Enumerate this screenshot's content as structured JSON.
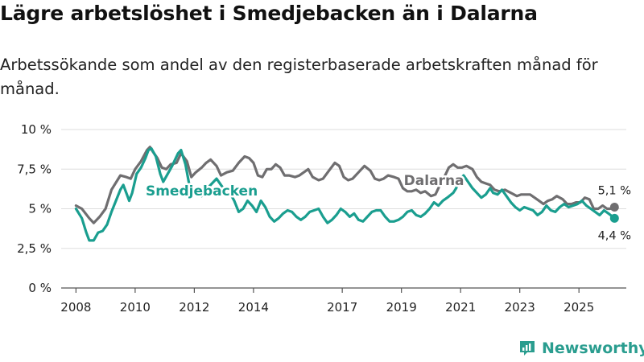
{
  "title": "Lägre arbetslöshet i Smedjebacken än i Dalarna",
  "subtitle": "Arbetssökande som andel av den registerbaserade arbetskraften månad för månad.",
  "brand": {
    "name": "Newsworthy",
    "icon": "newsworthy-logo-icon",
    "color": "#2a9d8f"
  },
  "chart_data": {
    "type": "line",
    "title": "Lägre arbetslöshet i Smedjebacken än i Dalarna",
    "xlabel": "",
    "ylabel": "",
    "xlim": [
      2007.5,
      2026.6
    ],
    "ylim": [
      0,
      10
    ],
    "grid": true,
    "x_ticks": [
      2008,
      2010,
      2012,
      2014,
      2017,
      2019,
      2021,
      2023,
      2025
    ],
    "y_ticks": [
      {
        "value": 0,
        "label": "0 %"
      },
      {
        "value": 2.5,
        "label": "2,5 %"
      },
      {
        "value": 5,
        "label": "5 %"
      },
      {
        "value": 7.5,
        "label": "7,5 %"
      },
      {
        "value": 10,
        "label": "10 %"
      }
    ],
    "series": [
      {
        "name": "Dalarna",
        "color": "#6f6e70",
        "end_label": "5,1 %",
        "label_anchor": {
          "x": 2020.1,
          "y": 6.5
        },
        "points": [
          [
            2008.0,
            5.2
          ],
          [
            2008.2,
            5.0
          ],
          [
            2008.45,
            4.4
          ],
          [
            2008.6,
            4.1
          ],
          [
            2008.8,
            4.5
          ],
          [
            2009.0,
            5.0
          ],
          [
            2009.2,
            6.2
          ],
          [
            2009.5,
            7.1
          ],
          [
            2009.7,
            7.0
          ],
          [
            2009.85,
            6.9
          ],
          [
            2010.0,
            7.5
          ],
          [
            2010.2,
            8.0
          ],
          [
            2010.4,
            8.7
          ],
          [
            2010.5,
            8.9
          ],
          [
            2010.6,
            8.6
          ],
          [
            2010.75,
            8.2
          ],
          [
            2010.9,
            7.6
          ],
          [
            2011.05,
            7.5
          ],
          [
            2011.2,
            7.8
          ],
          [
            2011.4,
            7.9
          ],
          [
            2011.55,
            8.5
          ],
          [
            2011.75,
            8.0
          ],
          [
            2011.9,
            7.0
          ],
          [
            2012.05,
            7.3
          ],
          [
            2012.25,
            7.6
          ],
          [
            2012.4,
            7.9
          ],
          [
            2012.55,
            8.1
          ],
          [
            2012.75,
            7.7
          ],
          [
            2012.9,
            7.1
          ],
          [
            2013.1,
            7.3
          ],
          [
            2013.3,
            7.4
          ],
          [
            2013.5,
            7.9
          ],
          [
            2013.7,
            8.3
          ],
          [
            2013.85,
            8.2
          ],
          [
            2014.0,
            7.9
          ],
          [
            2014.15,
            7.1
          ],
          [
            2014.3,
            7.0
          ],
          [
            2014.45,
            7.5
          ],
          [
            2014.6,
            7.5
          ],
          [
            2014.75,
            7.8
          ],
          [
            2014.9,
            7.6
          ],
          [
            2015.05,
            7.1
          ],
          [
            2015.2,
            7.1
          ],
          [
            2015.4,
            7.0
          ],
          [
            2015.55,
            7.1
          ],
          [
            2015.7,
            7.3
          ],
          [
            2015.85,
            7.5
          ],
          [
            2016.0,
            7.0
          ],
          [
            2016.2,
            6.8
          ],
          [
            2016.35,
            6.9
          ],
          [
            2016.55,
            7.4
          ],
          [
            2016.75,
            7.9
          ],
          [
            2016.9,
            7.7
          ],
          [
            2017.05,
            7.0
          ],
          [
            2017.2,
            6.8
          ],
          [
            2017.35,
            6.9
          ],
          [
            2017.55,
            7.3
          ],
          [
            2017.75,
            7.7
          ],
          [
            2017.95,
            7.4
          ],
          [
            2018.1,
            6.9
          ],
          [
            2018.25,
            6.8
          ],
          [
            2018.4,
            6.9
          ],
          [
            2018.55,
            7.1
          ],
          [
            2018.75,
            7.0
          ],
          [
            2018.9,
            6.9
          ],
          [
            2019.05,
            6.3
          ],
          [
            2019.2,
            6.1
          ],
          [
            2019.35,
            6.1
          ],
          [
            2019.5,
            6.2
          ],
          [
            2019.65,
            6.0
          ],
          [
            2019.8,
            6.1
          ],
          [
            2020.0,
            5.8
          ],
          [
            2020.15,
            5.9
          ],
          [
            2020.3,
            6.5
          ],
          [
            2020.45,
            7.0
          ],
          [
            2020.6,
            7.6
          ],
          [
            2020.75,
            7.8
          ],
          [
            2020.9,
            7.6
          ],
          [
            2021.05,
            7.6
          ],
          [
            2021.2,
            7.7
          ],
          [
            2021.4,
            7.5
          ],
          [
            2021.55,
            7.0
          ],
          [
            2021.7,
            6.7
          ],
          [
            2021.85,
            6.6
          ],
          [
            2022.0,
            6.5
          ],
          [
            2022.15,
            6.2
          ],
          [
            2022.3,
            6.1
          ],
          [
            2022.5,
            6.2
          ],
          [
            2022.7,
            6.0
          ],
          [
            2022.9,
            5.8
          ],
          [
            2023.05,
            5.9
          ],
          [
            2023.2,
            5.9
          ],
          [
            2023.35,
            5.9
          ],
          [
            2023.5,
            5.7
          ],
          [
            2023.65,
            5.5
          ],
          [
            2023.8,
            5.3
          ],
          [
            2023.95,
            5.5
          ],
          [
            2024.1,
            5.6
          ],
          [
            2024.25,
            5.8
          ],
          [
            2024.45,
            5.6
          ],
          [
            2024.6,
            5.3
          ],
          [
            2024.75,
            5.3
          ],
          [
            2024.9,
            5.4
          ],
          [
            2025.05,
            5.4
          ],
          [
            2025.2,
            5.7
          ],
          [
            2025.35,
            5.6
          ],
          [
            2025.5,
            5.0
          ],
          [
            2025.65,
            5.0
          ],
          [
            2025.8,
            5.2
          ],
          [
            2025.95,
            5.0
          ],
          [
            2026.05,
            5.0
          ],
          [
            2026.2,
            5.1
          ]
        ]
      },
      {
        "name": "Smedjebacken",
        "color": "#1a9e8f",
        "end_label": "4,4 %",
        "label_anchor": {
          "x": 2012.25,
          "y": 5.85
        },
        "points": [
          [
            2008.0,
            5.0
          ],
          [
            2008.2,
            4.4
          ],
          [
            2008.35,
            3.5
          ],
          [
            2008.45,
            3.0
          ],
          [
            2008.6,
            3.0
          ],
          [
            2008.75,
            3.5
          ],
          [
            2008.9,
            3.6
          ],
          [
            2009.05,
            4.0
          ],
          [
            2009.2,
            4.8
          ],
          [
            2009.35,
            5.5
          ],
          [
            2009.5,
            6.2
          ],
          [
            2009.6,
            6.5
          ],
          [
            2009.7,
            6.0
          ],
          [
            2009.8,
            5.5
          ],
          [
            2009.9,
            6.0
          ],
          [
            2010.05,
            7.2
          ],
          [
            2010.2,
            7.6
          ],
          [
            2010.35,
            8.2
          ],
          [
            2010.45,
            8.7
          ],
          [
            2010.55,
            8.8
          ],
          [
            2010.7,
            8.3
          ],
          [
            2010.85,
            7.2
          ],
          [
            2010.95,
            6.7
          ],
          [
            2011.1,
            7.2
          ],
          [
            2011.25,
            7.7
          ],
          [
            2011.45,
            8.5
          ],
          [
            2011.55,
            8.7
          ],
          [
            2011.7,
            7.8
          ],
          [
            2011.85,
            6.3
          ],
          [
            2012.0,
            6.1
          ],
          [
            2012.15,
            6.2
          ],
          [
            2012.25,
            5.8
          ],
          [
            2012.45,
            6.3
          ],
          [
            2012.6,
            6.6
          ],
          [
            2012.75,
            6.9
          ],
          [
            2012.9,
            6.5
          ],
          [
            2013.05,
            6.1
          ],
          [
            2013.2,
            6.0
          ],
          [
            2013.35,
            5.5
          ],
          [
            2013.5,
            4.8
          ],
          [
            2013.65,
            5.0
          ],
          [
            2013.8,
            5.5
          ],
          [
            2013.95,
            5.2
          ],
          [
            2014.1,
            4.8
          ],
          [
            2014.25,
            5.5
          ],
          [
            2014.4,
            5.1
          ],
          [
            2014.55,
            4.5
          ],
          [
            2014.7,
            4.2
          ],
          [
            2014.85,
            4.4
          ],
          [
            2015.0,
            4.7
          ],
          [
            2015.15,
            4.9
          ],
          [
            2015.3,
            4.8
          ],
          [
            2015.45,
            4.5
          ],
          [
            2015.6,
            4.3
          ],
          [
            2015.75,
            4.5
          ],
          [
            2015.9,
            4.8
          ],
          [
            2016.05,
            4.9
          ],
          [
            2016.2,
            5.0
          ],
          [
            2016.35,
            4.5
          ],
          [
            2016.5,
            4.1
          ],
          [
            2016.65,
            4.3
          ],
          [
            2016.8,
            4.6
          ],
          [
            2016.95,
            5.0
          ],
          [
            2017.1,
            4.8
          ],
          [
            2017.25,
            4.5
          ],
          [
            2017.4,
            4.7
          ],
          [
            2017.55,
            4.3
          ],
          [
            2017.7,
            4.2
          ],
          [
            2017.85,
            4.5
          ],
          [
            2018.0,
            4.8
          ],
          [
            2018.15,
            4.9
          ],
          [
            2018.3,
            4.9
          ],
          [
            2018.45,
            4.5
          ],
          [
            2018.6,
            4.2
          ],
          [
            2018.75,
            4.2
          ],
          [
            2018.9,
            4.3
          ],
          [
            2019.05,
            4.5
          ],
          [
            2019.2,
            4.8
          ],
          [
            2019.35,
            4.9
          ],
          [
            2019.5,
            4.6
          ],
          [
            2019.65,
            4.5
          ],
          [
            2019.8,
            4.7
          ],
          [
            2019.95,
            5.0
          ],
          [
            2020.1,
            5.4
          ],
          [
            2020.25,
            5.2
          ],
          [
            2020.4,
            5.5
          ],
          [
            2020.55,
            5.7
          ],
          [
            2020.75,
            6.0
          ],
          [
            2020.85,
            6.3
          ],
          [
            2020.95,
            6.8
          ],
          [
            2021.1,
            7.1
          ],
          [
            2021.25,
            6.7
          ],
          [
            2021.4,
            6.3
          ],
          [
            2021.55,
            6.0
          ],
          [
            2021.7,
            5.7
          ],
          [
            2021.85,
            5.9
          ],
          [
            2022.0,
            6.3
          ],
          [
            2022.1,
            6.0
          ],
          [
            2022.25,
            5.9
          ],
          [
            2022.4,
            6.2
          ],
          [
            2022.55,
            5.8
          ],
          [
            2022.7,
            5.4
          ],
          [
            2022.85,
            5.1
          ],
          [
            2023.0,
            4.9
          ],
          [
            2023.15,
            5.1
          ],
          [
            2023.3,
            5.0
          ],
          [
            2023.45,
            4.9
          ],
          [
            2023.6,
            4.6
          ],
          [
            2023.75,
            4.8
          ],
          [
            2023.9,
            5.2
          ],
          [
            2024.05,
            4.9
          ],
          [
            2024.2,
            4.8
          ],
          [
            2024.35,
            5.1
          ],
          [
            2024.5,
            5.3
          ],
          [
            2024.65,
            5.1
          ],
          [
            2024.8,
            5.2
          ],
          [
            2024.95,
            5.3
          ],
          [
            2025.1,
            5.5
          ],
          [
            2025.25,
            5.2
          ],
          [
            2025.4,
            5.0
          ],
          [
            2025.55,
            4.8
          ],
          [
            2025.7,
            4.6
          ],
          [
            2025.85,
            4.9
          ],
          [
            2026.0,
            4.7
          ],
          [
            2026.2,
            4.4
          ]
        ]
      }
    ]
  }
}
